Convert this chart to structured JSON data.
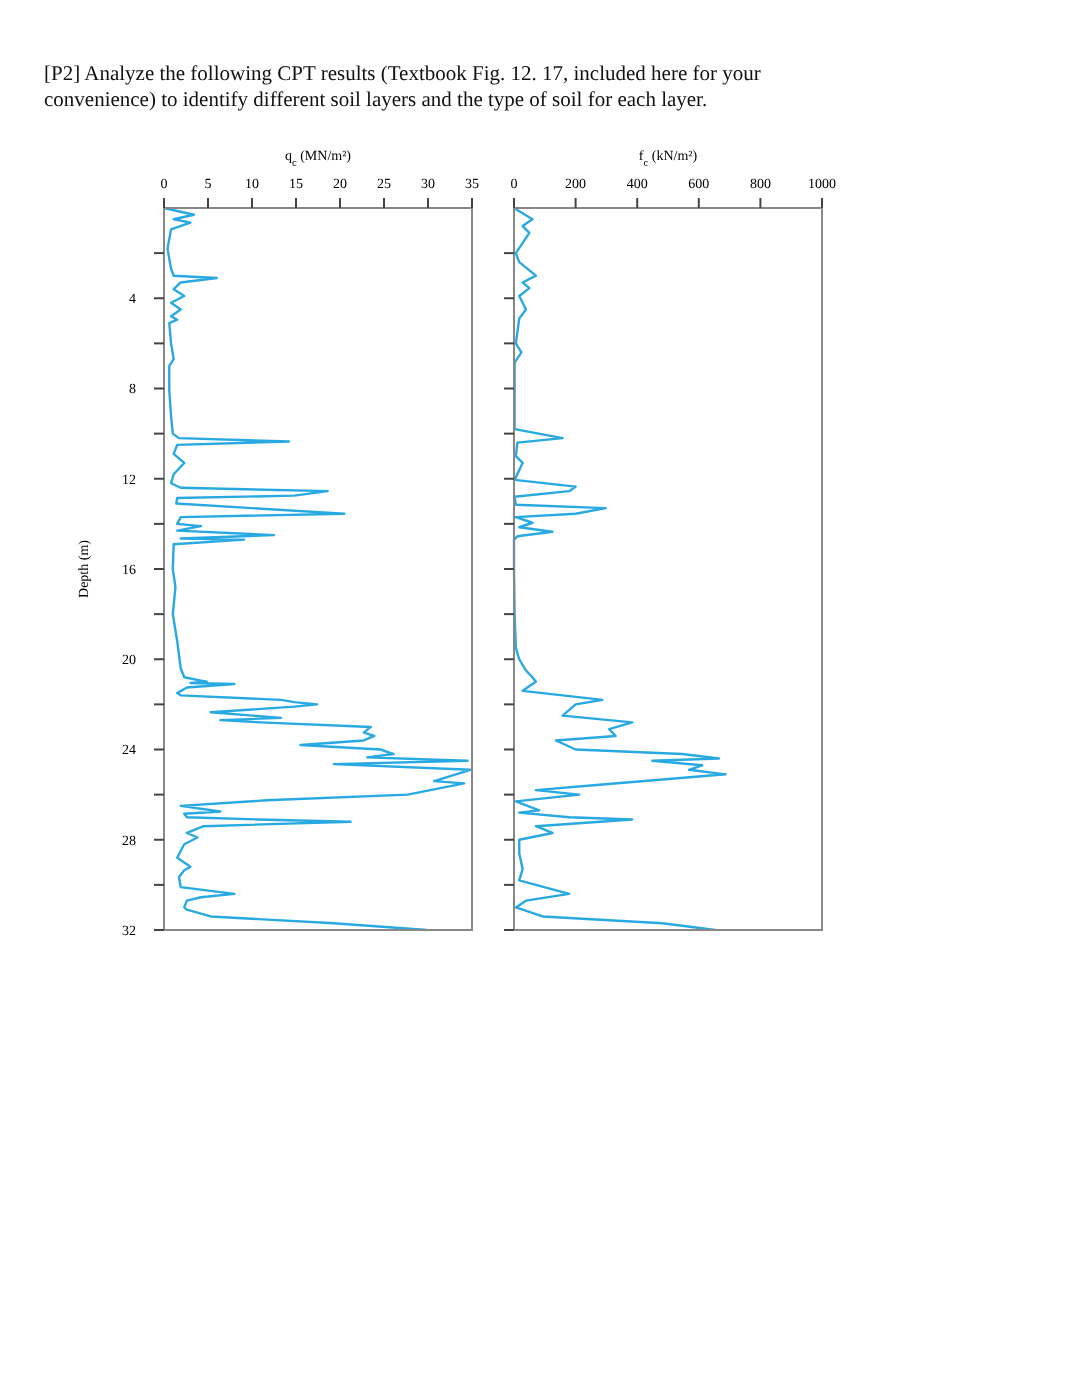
{
  "chart_data": [
    {
      "type": "line",
      "title": "[P2] Analyze the following CPT results (Textbook Fig. 12. 17, included here for your convenience) to identify different soil layers and the type of soil for each layer.",
      "xlabel": "q$_{c}$ (MN/m²)",
      "ylabel": "Depth (m)",
      "xlim": [
        0,
        35
      ],
      "xticks": [
        0,
        5,
        10,
        15,
        20,
        25,
        30,
        35
      ],
      "ylim": [
        32,
        0
      ],
      "yticks": [
        {
          "value": 2,
          "label": null
        },
        4,
        {
          "value": 6,
          "label": null
        },
        8,
        {
          "value": 10,
          "label": null
        },
        12,
        {
          "value": 14,
          "label": null
        },
        16,
        {
          "value": 18,
          "label": null
        },
        20,
        {
          "value": 22,
          "label": null
        },
        24,
        {
          "value": 26,
          "label": null
        },
        28,
        {
          "value": 30,
          "label": null
        },
        32
      ],
      "grid": false,
      "line_style": "solid",
      "series": [
        {
          "color": "#29a9e1",
          "x": [
            0,
            3.4,
            1.1,
            3,
            0.8,
            0.4,
            0.8,
            1.1,
            6,
            1.9,
            1.1,
            2.3,
            0.8,
            1.9,
            0.8,
            1.5,
            0.6,
            0.8,
            1.1,
            0.6,
            0.6,
            0.8,
            1,
            1.7,
            14.2,
            1.5,
            1.1,
            2.3,
            1.1,
            0.8,
            1.9,
            18.6,
            14.8,
            1.5,
            1.4,
            20.5,
            1.9,
            1.5,
            4.2,
            1.5,
            12.5,
            1.9,
            9.1,
            1.1,
            1,
            1.3,
            1,
            1.5,
            1.9,
            2.3,
            4.9,
            3,
            8,
            2.6,
            1.5,
            1.9,
            13.3,
            14.8,
            17.4,
            14.8,
            5.3,
            13.3,
            6.4,
            11,
            23.5,
            22.7,
            23.9,
            22.7,
            15.5,
            24.6,
            26.1,
            23.1,
            34.5,
            19.3,
            34.8,
            30.7,
            34.1,
            27.7,
            11.7,
            1.9,
            6.4,
            2.3,
            2.6,
            10.6,
            21.2,
            4.5,
            2.6,
            3.8,
            2.3,
            1.5,
            3,
            2.3,
            1.7,
            1.9,
            8,
            4.2,
            2.6,
            2.3,
            2.6,
            5.3,
            19.3,
            29.9
          ],
          "values": [
            0,
            0.3,
            0.5,
            0.65,
            0.95,
            1.8,
            2.7,
            3.0,
            3.1,
            3.3,
            3.6,
            3.9,
            4.2,
            4.5,
            4.8,
            4.95,
            5.1,
            6.0,
            6.7,
            7.0,
            8.1,
            9.2,
            10.0,
            10.2,
            10.35,
            10.5,
            10.9,
            11.3,
            11.8,
            12.2,
            12.4,
            12.55,
            12.75,
            12.85,
            13.1,
            13.55,
            13.7,
            14.0,
            14.1,
            14.3,
            14.5,
            14.65,
            14.7,
            14.9,
            16.0,
            16.8,
            18.0,
            19.2,
            20.4,
            20.8,
            21.0,
            21.05,
            21.1,
            21.25,
            21.5,
            21.6,
            21.8,
            21.9,
            22.0,
            22.1,
            22.35,
            22.6,
            22.7,
            22.8,
            23.0,
            23.25,
            23.4,
            23.6,
            23.8,
            24.0,
            24.2,
            24.35,
            24.5,
            24.65,
            24.9,
            25.4,
            25.5,
            26.0,
            26.25,
            26.5,
            26.75,
            26.85,
            27.0,
            27.1,
            27.2,
            27.4,
            27.7,
            27.9,
            28.2,
            28.8,
            29.2,
            29.35,
            29.65,
            30.1,
            30.4,
            30.55,
            30.7,
            31.0,
            31.1,
            31.4,
            31.7,
            32.0
          ]
        }
      ]
    },
    {
      "type": "line",
      "xlabel": "f$_{c}$ (kN/m²)",
      "xlim": [
        0,
        1000
      ],
      "xticks": [
        0,
        200,
        400,
        600,
        800,
        1000
      ],
      "ylim": [
        32,
        0
      ],
      "yticks": [
        {
          "value": 2,
          "label": null
        },
        {
          "value": 4,
          "label": null
        },
        {
          "value": 6,
          "label": null
        },
        {
          "value": 8,
          "label": null
        },
        {
          "value": 10,
          "label": null
        },
        {
          "value": 12,
          "label": null
        },
        {
          "value": 14,
          "label": null
        },
        {
          "value": 16,
          "label": null
        },
        {
          "value": 18,
          "label": null
        },
        {
          "value": 20,
          "label": null
        },
        {
          "value": 22,
          "label": null
        },
        {
          "value": 24,
          "label": null
        },
        {
          "value": 26,
          "label": null
        },
        {
          "value": 28,
          "label": null
        },
        {
          "value": 30,
          "label": null
        },
        {
          "value": 32,
          "label": null
        }
      ],
      "tick_labels": "x",
      "grid": false,
      "line_style": "solid",
      "series": [
        {
          "color": "#29a9e1",
          "x": [
            0,
            60,
            28,
            50,
            6,
            17,
            71,
            28,
            50,
            17,
            39,
            17,
            6,
            24,
            2,
            2,
            158,
            11,
            6,
            28,
            2,
            200,
            179,
            2,
            6,
            298,
            200,
            6,
            60,
            17,
            125,
            11,
            0,
            0,
            2,
            6,
            17,
            39,
            60,
            71,
            28,
            93,
            287,
            200,
            158,
            384,
            309,
            330,
            136,
            200,
            546,
            665,
            449,
            611,
            568,
            687,
            287,
            71,
            212,
            6,
            82,
            17,
            179,
            384,
            71,
            125,
            17,
            17,
            28,
            17,
            179,
            39,
            6,
            93,
            482,
            654
          ],
          "values": [
            0,
            0.5,
            0.8,
            1.1,
            2.0,
            2.4,
            3.0,
            3.3,
            3.55,
            3.9,
            4.5,
            4.9,
            6.0,
            6.4,
            6.85,
            9.8,
            10.2,
            10.4,
            11.0,
            11.3,
            12.05,
            12.35,
            12.55,
            12.8,
            13.15,
            13.3,
            13.55,
            13.7,
            13.95,
            14.15,
            14.35,
            14.55,
            14.7,
            16.0,
            18.0,
            19.5,
            20.0,
            20.5,
            20.8,
            21.0,
            21.4,
            21.5,
            21.8,
            22.0,
            22.5,
            22.8,
            23.1,
            23.4,
            23.6,
            24.0,
            24.2,
            24.4,
            24.5,
            24.7,
            24.9,
            25.1,
            25.55,
            25.8,
            26.0,
            26.3,
            26.7,
            26.8,
            27.0,
            27.1,
            27.4,
            27.7,
            28.0,
            28.6,
            29.3,
            29.8,
            30.4,
            30.7,
            31.0,
            31.4,
            31.7,
            32.0
          ]
        }
      ]
    }
  ]
}
